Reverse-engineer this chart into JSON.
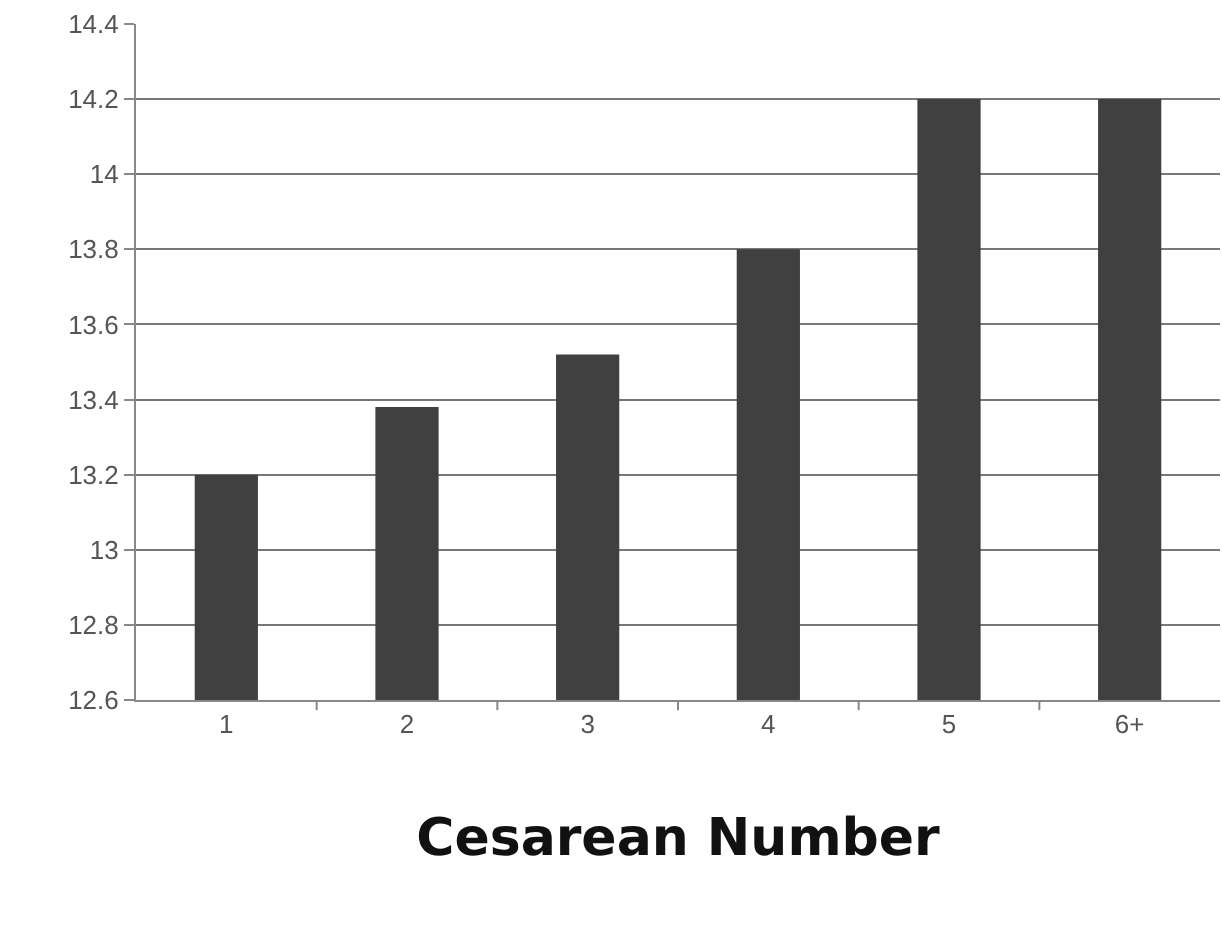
{
  "chart_data": {
    "type": "bar",
    "xlabel": "Cesarean Number",
    "categories": [
      "1",
      "2",
      "3",
      "4",
      "5",
      "6+"
    ],
    "values": [
      13.2,
      13.38,
      13.52,
      13.8,
      14.2,
      14.2
    ],
    "color": "#404040",
    "ylim": [
      12.6,
      14.4
    ],
    "yticks": [
      12.6,
      12.8,
      13,
      13.2,
      13.4,
      13.6,
      13.8,
      14,
      14.2,
      14.4
    ],
    "grid": "y"
  }
}
